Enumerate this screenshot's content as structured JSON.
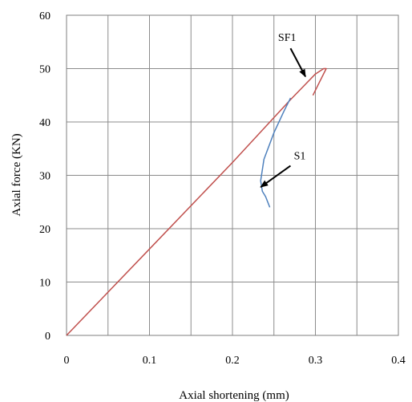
{
  "chart_data": {
    "type": "line",
    "title": "",
    "xlabel": "Axial shortening (mm)",
    "ylabel": "Axial force (KN)",
    "xlim": [
      0,
      0.4
    ],
    "ylim": [
      0,
      60
    ],
    "x_ticks": [
      "0",
      "0.1",
      "0.2",
      "0.3",
      "0.4"
    ],
    "y_ticks": [
      "0",
      "10",
      "20",
      "30",
      "40",
      "50",
      "60"
    ],
    "grid": true,
    "minor_x_grid": true,
    "series": [
      {
        "name": "SF1",
        "color": "#c0504d",
        "points": [
          [
            0,
            0
          ],
          [
            0.1,
            16.2
          ],
          [
            0.2,
            32.4
          ],
          [
            0.27,
            44.2
          ],
          [
            0.3,
            49.0
          ],
          [
            0.31,
            50.0
          ],
          [
            0.313,
            50.0
          ],
          [
            0.305,
            47.5
          ],
          [
            0.297,
            45.0
          ]
        ]
      },
      {
        "name": "S1",
        "color": "#4f81bd",
        "points": [
          [
            0.27,
            44.5
          ],
          [
            0.262,
            42.0
          ],
          [
            0.25,
            38.0
          ],
          [
            0.238,
            33.0
          ],
          [
            0.234,
            29.0
          ],
          [
            0.236,
            27.0
          ],
          [
            0.24,
            26.0
          ],
          [
            0.245,
            24.0
          ]
        ]
      }
    ],
    "annotations": [
      {
        "text": "SF1",
        "x": 0.255,
        "y": 55.2,
        "arrow_from": [
          0.27,
          53.8
        ],
        "arrow_to": [
          0.288,
          48.5
        ]
      },
      {
        "text": "S1",
        "x": 0.274,
        "y": 33.0,
        "arrow_from": [
          0.27,
          31.8
        ],
        "arrow_to": [
          0.234,
          27.8
        ]
      }
    ]
  }
}
